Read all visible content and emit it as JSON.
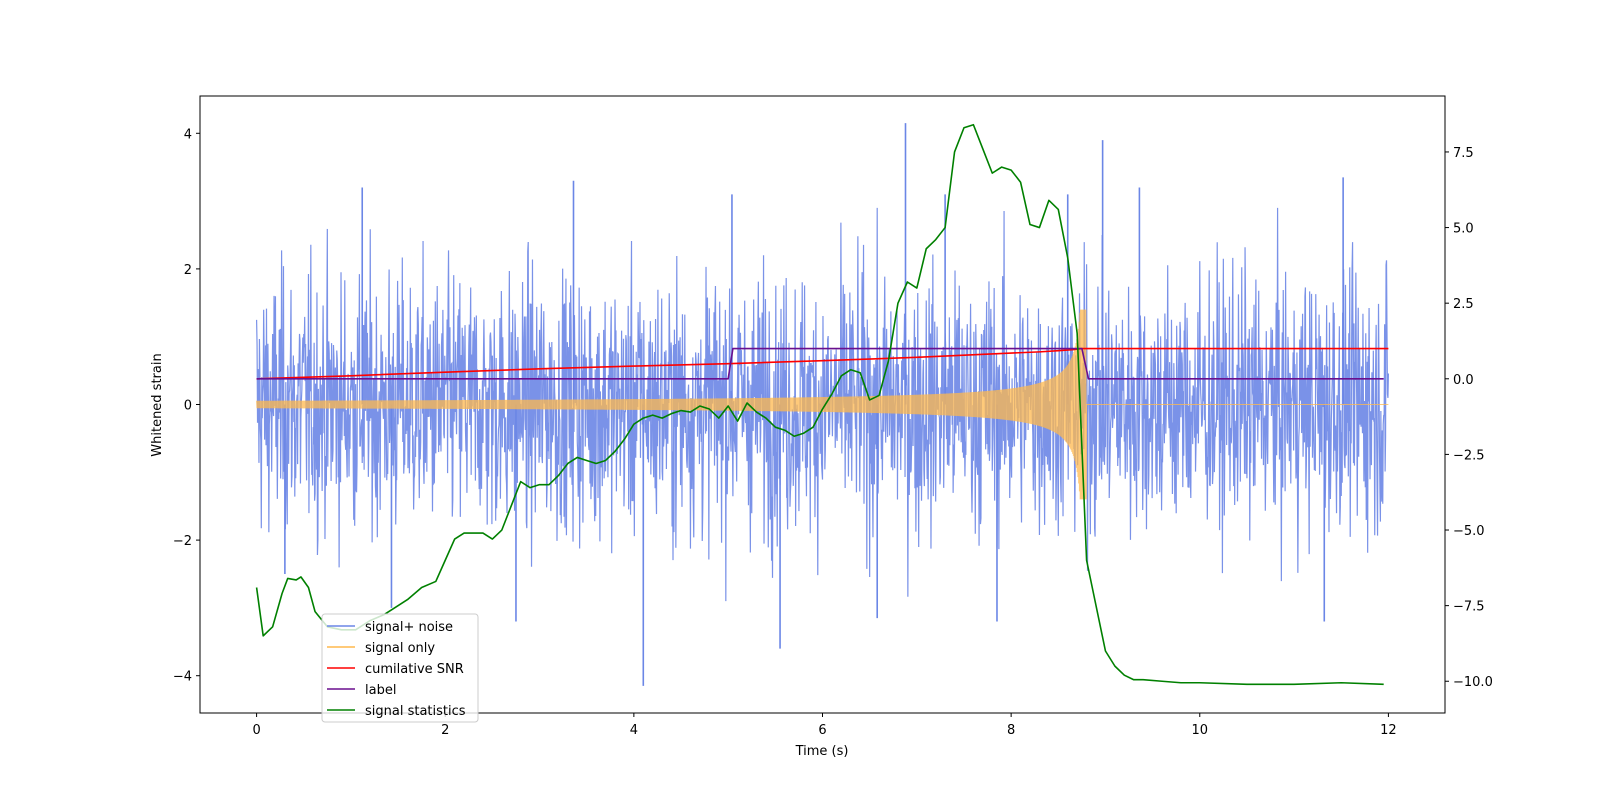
{
  "chart_data": {
    "type": "line",
    "xlabel": "Time (s)",
    "ylabel": "Whitened strain",
    "y2label": "",
    "xlim": [
      -0.6,
      12.6
    ],
    "ylim": [
      -4.55,
      4.55
    ],
    "y2lim": [
      -11.05,
      9.35
    ],
    "xticks": [
      0,
      2,
      4,
      6,
      8,
      10,
      12
    ],
    "xtick_labels": [
      "0",
      "2",
      "4",
      "6",
      "8",
      "10",
      "12"
    ],
    "yticks": [
      -4,
      -2,
      0,
      2,
      4
    ],
    "ytick_labels": [
      "−4",
      "−2",
      "0",
      "2",
      "4"
    ],
    "y2ticks": [
      -10,
      -7.5,
      -5,
      -2.5,
      0,
      2.5,
      5,
      7.5
    ],
    "y2tick_labels": [
      "−10.0",
      "−7.5",
      "−5.0",
      "−2.5",
      "0.0",
      "2.5",
      "5.0",
      "7.5"
    ],
    "legend_position": "lower-left",
    "series": [
      {
        "name": "signal+ noise",
        "color": "#6b86e6",
        "axis": "left",
        "kind": "noise-band",
        "t_range": [
          0,
          12
        ],
        "typical_amplitude": 1.5,
        "peak_excursions": [
          {
            "x": 0.3,
            "y": -2.5
          },
          {
            "x": 1.12,
            "y": 3.2
          },
          {
            "x": 1.43,
            "y": -3.0
          },
          {
            "x": 2.75,
            "y": -3.2
          },
          {
            "x": 3.36,
            "y": 3.3
          },
          {
            "x": 4.1,
            "y": -4.15
          },
          {
            "x": 5.04,
            "y": 3.1
          },
          {
            "x": 5.55,
            "y": -3.6
          },
          {
            "x": 6.58,
            "y": -3.15
          },
          {
            "x": 6.88,
            "y": 4.15
          },
          {
            "x": 7.3,
            "y": 3.1
          },
          {
            "x": 7.85,
            "y": -3.2
          },
          {
            "x": 8.6,
            "y": 3.1
          },
          {
            "x": 8.97,
            "y": 3.9
          },
          {
            "x": 9.36,
            "y": 3.2
          },
          {
            "x": 11.32,
            "y": -3.2
          },
          {
            "x": 11.52,
            "y": 3.35
          }
        ]
      },
      {
        "name": "signal only",
        "color": "#ffb84d",
        "axis": "left",
        "kind": "chirp",
        "t_range": [
          0,
          12
        ],
        "merger_time": 8.75,
        "peak_amplitude": 1.4
      },
      {
        "name": "cumilative SNR",
        "color": "#ff0000",
        "axis": "right",
        "x": [
          0,
          1,
          2,
          3,
          4,
          5,
          6,
          7,
          7.5,
          8,
          8.3,
          8.5,
          8.65,
          8.75,
          9,
          10,
          11,
          12
        ],
        "y": [
          0.0,
          0.1,
          0.22,
          0.33,
          0.42,
          0.5,
          0.6,
          0.71,
          0.78,
          0.85,
          0.89,
          0.93,
          0.96,
          1.0,
          1.0,
          1.0,
          1.0,
          1.0
        ]
      },
      {
        "name": "label",
        "color": "#6a0f8e",
        "axis": "right",
        "x": [
          0,
          5.0,
          5.05,
          8.75,
          8.82,
          11.95
        ],
        "y": [
          0,
          0,
          1,
          1,
          0,
          0
        ]
      },
      {
        "name": "signal statistics",
        "color": "#008000",
        "axis": "right",
        "x": [
          0,
          0.07,
          0.17,
          0.27,
          0.33,
          0.42,
          0.47,
          0.55,
          0.62,
          0.75,
          0.9,
          1.05,
          1.2,
          1.35,
          1.45,
          1.6,
          1.75,
          1.9,
          2.0,
          2.1,
          2.2,
          2.3,
          2.4,
          2.5,
          2.6,
          2.7,
          2.8,
          2.9,
          3.0,
          3.1,
          3.2,
          3.3,
          3.4,
          3.5,
          3.6,
          3.7,
          3.8,
          3.9,
          4.0,
          4.1,
          4.2,
          4.3,
          4.4,
          4.5,
          4.6,
          4.7,
          4.8,
          4.9,
          5.0,
          5.1,
          5.2,
          5.3,
          5.4,
          5.5,
          5.6,
          5.7,
          5.8,
          5.9,
          6.0,
          6.1,
          6.2,
          6.3,
          6.4,
          6.5,
          6.6,
          6.7,
          6.8,
          6.9,
          7.0,
          7.1,
          7.2,
          7.3,
          7.4,
          7.5,
          7.6,
          7.7,
          7.8,
          7.9,
          8.0,
          8.1,
          8.2,
          8.3,
          8.4,
          8.5,
          8.6,
          8.7,
          8.8,
          8.9,
          9.0,
          9.1,
          9.2,
          9.3,
          9.4,
          9.6,
          9.8,
          10.0,
          10.5,
          11.0,
          11.5,
          11.95
        ],
        "y": [
          -6.9,
          -8.5,
          -8.2,
          -7.1,
          -6.6,
          -6.65,
          -6.55,
          -6.9,
          -7.7,
          -8.2,
          -8.3,
          -8.3,
          -8.0,
          -7.8,
          -7.6,
          -7.3,
          -6.9,
          -6.7,
          -6.0,
          -5.3,
          -5.1,
          -5.1,
          -5.1,
          -5.3,
          -5.0,
          -4.2,
          -3.4,
          -3.6,
          -3.5,
          -3.5,
          -3.2,
          -2.8,
          -2.6,
          -2.7,
          -2.8,
          -2.7,
          -2.4,
          -2.0,
          -1.5,
          -1.3,
          -1.2,
          -1.3,
          -1.15,
          -1.05,
          -1.1,
          -0.9,
          -1.0,
          -1.3,
          -0.9,
          -1.4,
          -0.8,
          -1.1,
          -1.3,
          -1.6,
          -1.7,
          -1.9,
          -1.8,
          -1.6,
          -1.0,
          -0.5,
          0.1,
          0.3,
          0.2,
          -0.7,
          -0.55,
          0.6,
          2.5,
          3.2,
          3.0,
          4.3,
          4.6,
          5.0,
          7.5,
          8.3,
          8.4,
          7.6,
          6.8,
          7.0,
          6.9,
          6.5,
          5.1,
          5.0,
          5.9,
          5.6,
          4.0,
          1.5,
          -6.0,
          -7.5,
          -9.0,
          -9.5,
          -9.8,
          -9.95,
          -9.95,
          -10.0,
          -10.05,
          -10.05,
          -10.1,
          -10.1,
          -10.05,
          -10.1
        ]
      }
    ]
  }
}
